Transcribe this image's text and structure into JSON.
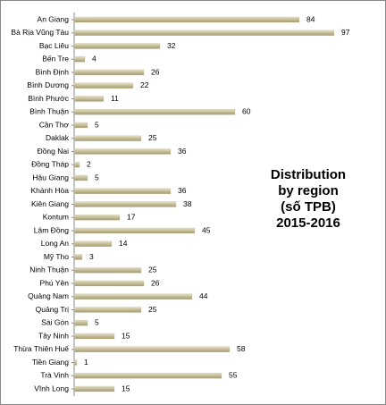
{
  "chart_data": {
    "type": "bar",
    "orientation": "horizontal",
    "title": [
      "Distribution",
      "by region",
      "(số TPB)",
      "2015-2016"
    ],
    "categories": [
      "An Giang",
      "Bà Rịa Vũng Tàu",
      "Bạc Liêu",
      "Bến Tre",
      "Bình Định",
      "Bình Dương",
      "Bình Phước",
      "Bình Thuận",
      "Cần Thơ",
      "Daklak",
      "Đồng Nai",
      "Đồng Tháp",
      "Hậu Giang",
      "Khánh Hòa",
      "Kiên Giang",
      "Kontum",
      "Lâm Đồng",
      "Long An",
      "Mỹ Tho",
      "Ninh Thuận",
      "Phú Yên",
      "Quảng Nam",
      "Quảng Trị",
      "Sài Gòn",
      "Tây Ninh",
      "Thừa Thiên Huế",
      "Tiền Giang",
      "Trà Vinh",
      "Vĩnh Long"
    ],
    "values": [
      84,
      97,
      32,
      4,
      26,
      22,
      11,
      60,
      5,
      25,
      36,
      2,
      5,
      36,
      38,
      17,
      45,
      14,
      3,
      25,
      26,
      44,
      25,
      5,
      15,
      58,
      1,
      55,
      15
    ],
    "color": "#c4bc96"
  }
}
